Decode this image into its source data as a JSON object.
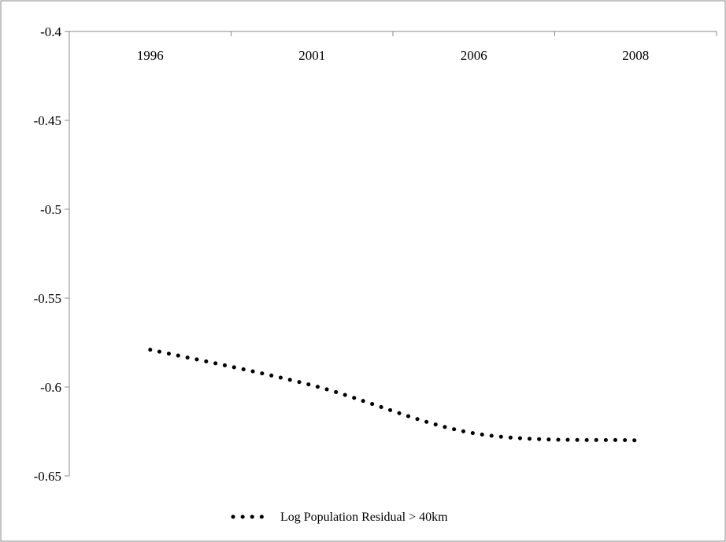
{
  "chart_data": {
    "type": "line",
    "title": "",
    "xlabel": "",
    "ylabel": "",
    "categories": [
      "1996",
      "2001",
      "2006",
      "2008"
    ],
    "x_axis_position": "top",
    "ylim": [
      -0.65,
      -0.4
    ],
    "yticks": [
      -0.4,
      -0.45,
      -0.5,
      -0.55,
      -0.6,
      -0.65
    ],
    "ytick_labels": [
      "-0.4",
      "-0.45",
      "-0.5",
      "-0.55",
      "-0.6",
      "-0.65"
    ],
    "grid": false,
    "legend": {
      "position": "bottom"
    },
    "series": [
      {
        "name": "Log Population Residual > 40km",
        "values": [
          -0.579,
          -0.599,
          -0.626,
          -0.63
        ],
        "line_style": "dotted",
        "color": "#000000"
      }
    ]
  }
}
